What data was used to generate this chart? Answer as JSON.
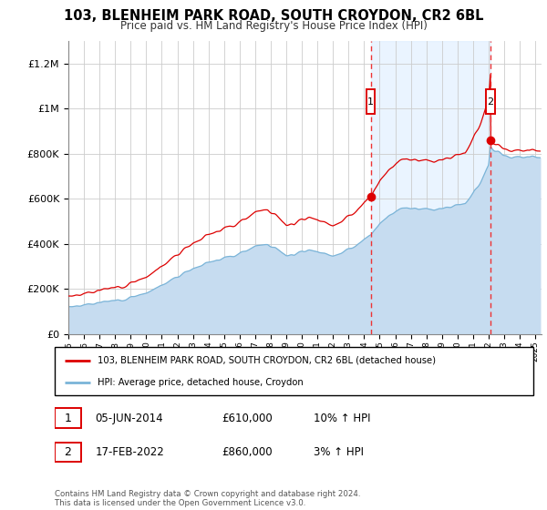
{
  "title": "103, BLENHEIM PARK ROAD, SOUTH CROYDON, CR2 6BL",
  "subtitle": "Price paid vs. HM Land Registry's House Price Index (HPI)",
  "hpi_label": "HPI: Average price, detached house, Croydon",
  "price_label": "103, BLENHEIM PARK ROAD, SOUTH CROYDON, CR2 6BL (detached house)",
  "sale1_date": "05-JUN-2014",
  "sale1_price": 610000,
  "sale1_hpi_text": "10% ↑ HPI",
  "sale2_date": "17-FEB-2022",
  "sale2_price": 860000,
  "sale2_hpi_text": "3% ↑ HPI",
  "footer": "Contains HM Land Registry data © Crown copyright and database right 2024.\nThis data is licensed under the Open Government Licence v3.0.",
  "ylim": [
    0,
    1300000
  ],
  "yticks": [
    0,
    200000,
    400000,
    600000,
    800000,
    1000000,
    1200000
  ],
  "ytick_labels": [
    "£0",
    "£200K",
    "£400K",
    "£600K",
    "£800K",
    "£1M",
    "£1.2M"
  ],
  "hpi_fill_color": "#c6dcf0",
  "hpi_line_color": "#7ab4d8",
  "price_color": "#dd0000",
  "vline_color": "#ee3333",
  "shade_color": "#ddeeff",
  "background_color": "#ffffff",
  "grid_color": "#cccccc",
  "sale1_t": 2014.42,
  "sale2_t": 2022.12
}
